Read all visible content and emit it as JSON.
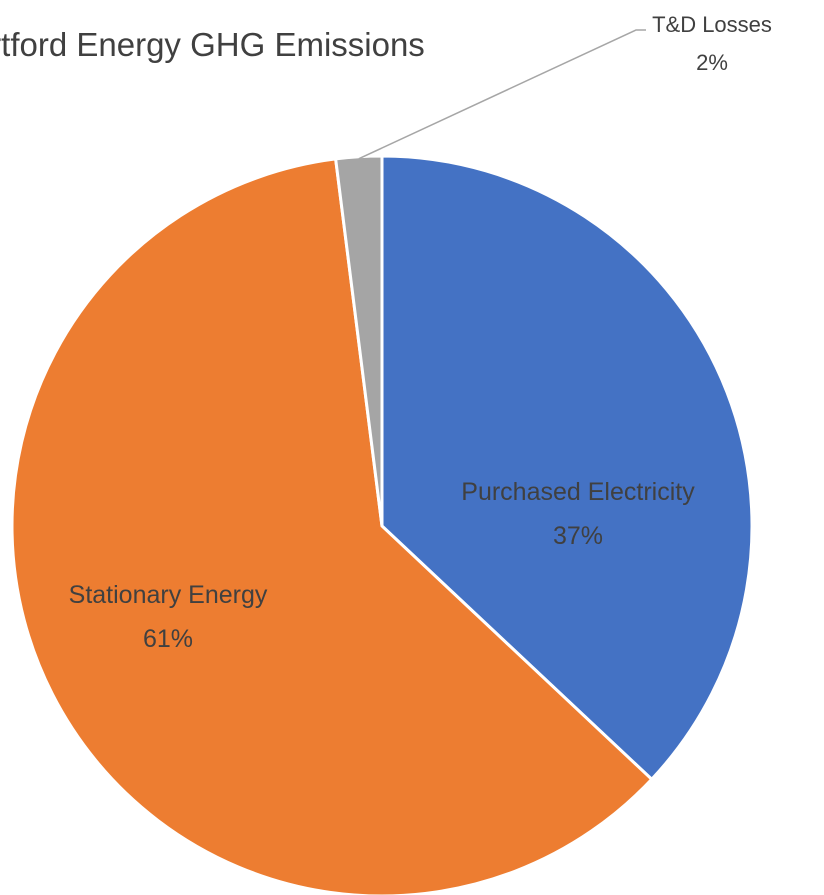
{
  "chart_data": {
    "type": "pie",
    "title": "Hartford Energy GHG Emissions",
    "slices": [
      {
        "name": "Purchased Electricity",
        "value": 37,
        "value_label": "37%",
        "color": "#4472C4"
      },
      {
        "name": "Stationary Energy",
        "value": 61,
        "value_label": "61%",
        "color": "#ED7D31"
      },
      {
        "name": "T&D Losses",
        "value": 2,
        "value_label": "2%",
        "color": "#A5A5A5"
      }
    ],
    "start_angle": "12 o'clock",
    "direction": "clockwise",
    "legend": "none"
  }
}
